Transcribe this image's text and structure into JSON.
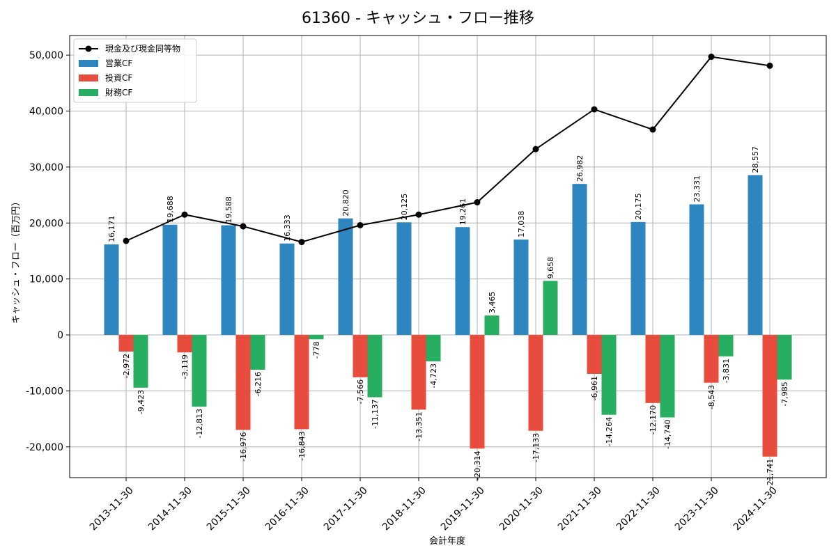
{
  "chart_data": {
    "type": "bar",
    "title": "61360 - キャッシュ・フロー推移",
    "xlabel": "会計年度",
    "ylabel": "キャッシュ・フロー（百万円）",
    "ylim": [
      -25500,
      53500
    ],
    "y_ticks": [
      -20000,
      -10000,
      0,
      10000,
      20000,
      30000,
      40000,
      50000
    ],
    "y_tick_labels": [
      "-20,000",
      "-10,000",
      "0",
      "10,000",
      "20,000",
      "30,000",
      "40,000",
      "50,000"
    ],
    "grid": true,
    "legend_position": "top-left",
    "categories": [
      "2013-11-30",
      "2014-11-30",
      "2015-11-30",
      "2016-11-30",
      "2017-11-30",
      "2018-11-30",
      "2019-11-30",
      "2020-11-30",
      "2021-11-30",
      "2022-11-30",
      "2023-11-30",
      "2024-11-30"
    ],
    "series": [
      {
        "name": "営業CF",
        "kind": "bar",
        "color": "#2e86c1",
        "values": [
          16171,
          19688,
          19588,
          16333,
          20820,
          20125,
          19261,
          17038,
          26982,
          20175,
          23331,
          28557
        ]
      },
      {
        "name": "投資CF",
        "kind": "bar",
        "color": "#e74c3c",
        "values": [
          -2972,
          -3119,
          -16976,
          -16843,
          -7566,
          -13351,
          -20314,
          -17133,
          -6961,
          -12170,
          -8543,
          -21741
        ]
      },
      {
        "name": "財務CF",
        "kind": "bar",
        "color": "#27ae60",
        "values": [
          -9423,
          -12813,
          -6216,
          -778,
          -11137,
          -4723,
          3465,
          9658,
          -14264,
          -14740,
          -3831,
          -7985
        ]
      },
      {
        "name": "現金及び現金同等物",
        "kind": "line",
        "color": "#000000",
        "values": [
          16800,
          21500,
          19400,
          16600,
          19600,
          21500,
          23700,
          33200,
          40300,
          36700,
          49700,
          48100
        ]
      }
    ]
  }
}
